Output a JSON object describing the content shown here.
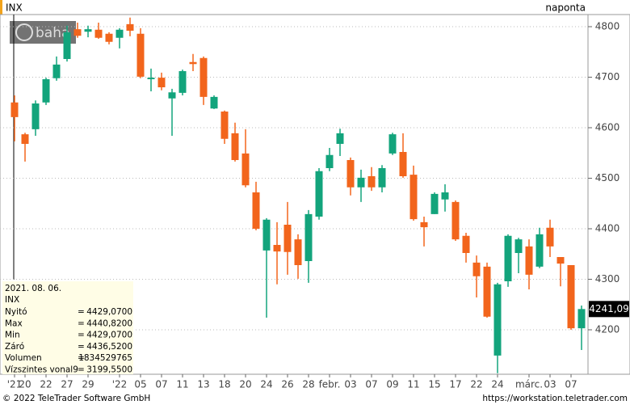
{
  "header": {
    "symbol": "INX",
    "interval": "naponta",
    "watermark": "baha"
  },
  "chart_data": {
    "type": "candlestick",
    "categories": [
      "'21",
      "20",
      null,
      "22",
      null,
      "27",
      null,
      "29",
      null,
      null,
      "'22",
      null,
      "05",
      null,
      "07",
      null,
      "11",
      null,
      "13",
      null,
      "18",
      null,
      "20",
      null,
      "24",
      null,
      "26",
      null,
      "28",
      null,
      "febr.",
      null,
      "03",
      null,
      "07",
      null,
      "09",
      null,
      "11",
      null,
      "15",
      null,
      "17",
      null,
      "22",
      null,
      "24",
      null,
      null,
      "márc.",
      null,
      "03",
      null,
      "07",
      null
    ],
    "open": [
      4650,
      4587,
      4597,
      4650,
      4698,
      4736,
      4795,
      4790,
      4794,
      4786,
      4778,
      4805,
      4786,
      4696,
      4699,
      4658,
      4669,
      4730,
      4738,
      4638,
      4632,
      4589,
      4549,
      4472,
      4357,
      4368,
      4408,
      4379,
      4336,
      4424,
      4520,
      4568,
      4536,
      4482,
      4504,
      4482,
      4549,
      4552,
      4507,
      4413,
      4429,
      4458,
      4453,
      4386,
      4333,
      4325,
      4149,
      4296,
      4352,
      4365,
      4325,
      4402,
      4344,
      4328,
      4203
    ],
    "high": [
      4664,
      4590,
      4654,
      4699,
      4741,
      4802,
      4808,
      4802,
      4808,
      4789,
      4797,
      4818,
      4797,
      4717,
      4709,
      4677,
      4715,
      4746,
      4741,
      4664,
      4634,
      4610,
      4597,
      4493,
      4421,
      4413,
      4453,
      4389,
      4437,
      4520,
      4560,
      4598,
      4541,
      4517,
      4522,
      4526,
      4590,
      4589,
      4525,
      4424,
      4472,
      4488,
      4456,
      4392,
      4347,
      4333,
      4293,
      4389,
      4382,
      4379,
      4402,
      4418,
      4344,
      4328,
      4248
    ],
    "low": [
      4573,
      4533,
      4584,
      4645,
      4693,
      4731,
      4778,
      4779,
      4776,
      4765,
      4757,
      4781,
      4698,
      4672,
      4674,
      4584,
      4664,
      4712,
      4645,
      4637,
      4568,
      4533,
      4482,
      4397,
      4224,
      4290,
      4309,
      4301,
      4293,
      4418,
      4514,
      4544,
      4466,
      4453,
      4475,
      4472,
      4546,
      4501,
      4416,
      4365,
      4429,
      4434,
      4376,
      4333,
      4264,
      4224,
      4114,
      4285,
      4312,
      4280,
      4322,
      4344,
      4286,
      4200,
      4160
    ],
    "close": [
      4621,
      4568,
      4648,
      4696,
      4725,
      4789,
      4782,
      4795,
      4778,
      4770,
      4794,
      4792,
      4701,
      4699,
      4680,
      4670,
      4712,
      4726,
      4661,
      4661,
      4578,
      4536,
      4486,
      4400,
      4418,
      4355,
      4354,
      4328,
      4429,
      4514,
      4546,
      4589,
      4482,
      4501,
      4482,
      4520,
      4587,
      4504,
      4419,
      4403,
      4469,
      4472,
      4379,
      4352,
      4306,
      4226,
      4290,
      4386,
      4379,
      4309,
      4389,
      4365,
      4331,
      4203,
      4241.09
    ],
    "up_color": "#13a47c",
    "down_color": "#f2651c",
    "ylim": [
      4112,
      4824
    ],
    "yticks": [
      4200,
      4300,
      4400,
      4500,
      4600,
      4700,
      4800
    ],
    "grid": true,
    "last_price": {
      "value": 4241.09,
      "label": "4241,09"
    }
  },
  "info_box": {
    "date": "2021. 08. 06.",
    "symbol": "INX",
    "separator": "=",
    "rows": [
      [
        "Nyitó",
        "4429,0700"
      ],
      [
        "Max",
        "4440,8200"
      ],
      [
        "Min",
        "4429,0700"
      ],
      [
        "Záró",
        "4436,5200"
      ],
      [
        "Volumen",
        "1834529765"
      ],
      [
        "Vízszintes vonal9",
        "3199,5500"
      ]
    ]
  },
  "footer": {
    "copyright": "© 2022 TeleTrader Software GmbH",
    "url": "https://workstation.teletrader.com"
  }
}
